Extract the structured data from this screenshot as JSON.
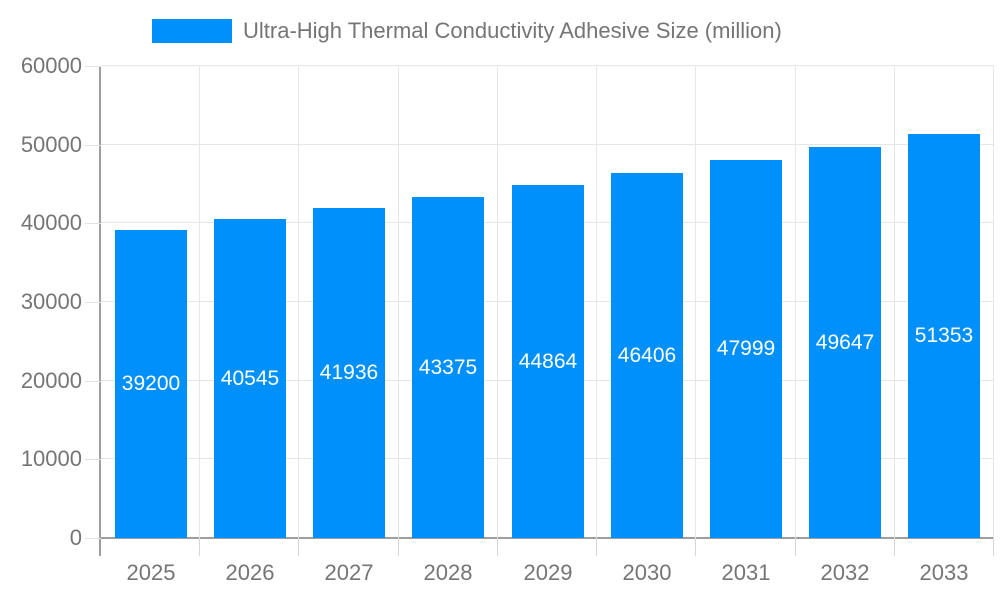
{
  "legend": {
    "swatch_color": "#0090fb",
    "label": "Ultra-High Thermal Conductivity Adhesive Size (million)"
  },
  "colors": {
    "bar": "#0090fb",
    "axis_label": "#757575",
    "grid_line": "#e6e6e6",
    "axis_line": "#9e9e9e",
    "value_label": "#ffffff"
  },
  "chart_data": {
    "type": "bar",
    "title": "Ultra-High Thermal Conductivity Adhesive Size (million)",
    "categories": [
      "2025",
      "2026",
      "2027",
      "2028",
      "2029",
      "2030",
      "2031",
      "2032",
      "2033"
    ],
    "values": [
      39200,
      40545,
      41936,
      43375,
      44864,
      46406,
      47999,
      49647,
      51353
    ],
    "xlabel": "",
    "ylabel": "",
    "ylim": [
      0,
      60000
    ],
    "ytick_step": 10000,
    "grid": "on",
    "legend_position": "top",
    "value_labels": "inside-center"
  }
}
